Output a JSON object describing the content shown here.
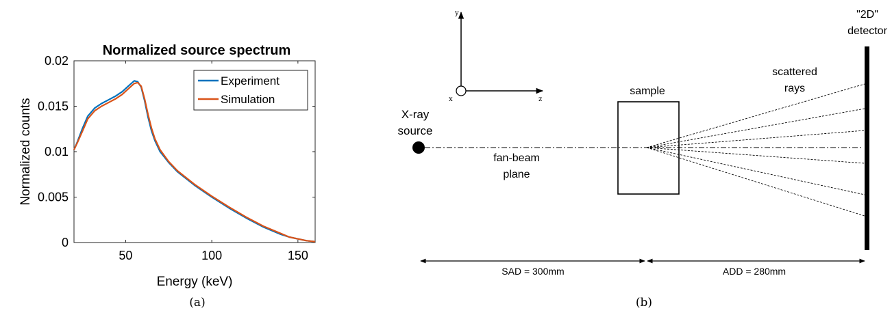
{
  "panel_a": {
    "caption": "(a)",
    "chart_data": {
      "type": "line",
      "title": "Normalized source spectrum",
      "xlabel": "Energy (keV)",
      "ylabel": "Normalized counts",
      "xlim": [
        20,
        160
      ],
      "ylim": [
        0,
        0.02
      ],
      "xticks": [
        50,
        100,
        150
      ],
      "xtick_labels": [
        "50",
        "100",
        "150"
      ],
      "yticks": [
        0,
        0.005,
        0.01,
        0.015,
        0.02
      ],
      "ytick_labels": [
        "0",
        "0.005",
        "0.01",
        "0.015",
        "0.02"
      ],
      "grid": false,
      "legend_position": "top-right",
      "series": [
        {
          "name": "Experiment",
          "color": "#0072BD",
          "x": [
            20,
            22,
            25,
            28,
            32,
            36,
            40,
            44,
            48,
            52,
            55,
            57,
            59,
            61,
            63,
            65,
            67,
            70,
            75,
            80,
            90,
            100,
            110,
            120,
            130,
            140,
            145,
            150,
            155,
            160
          ],
          "y": [
            0.0102,
            0.0111,
            0.0126,
            0.0139,
            0.0148,
            0.0153,
            0.0157,
            0.0161,
            0.0166,
            0.0173,
            0.0178,
            0.0177,
            0.0171,
            0.0156,
            0.0138,
            0.0123,
            0.0112,
            0.01,
            0.0088,
            0.0078,
            0.0063,
            0.005,
            0.0038,
            0.0027,
            0.0017,
            0.0009,
            0.0006,
            0.0004,
            0.0002,
            0.0001
          ]
        },
        {
          "name": "Simulation",
          "color": "#D95319",
          "x": [
            20,
            22,
            25,
            28,
            32,
            36,
            40,
            44,
            48,
            52,
            55,
            57,
            59,
            61,
            63,
            65,
            67,
            70,
            75,
            80,
            90,
            100,
            110,
            120,
            130,
            140,
            145,
            150,
            155,
            160
          ],
          "y": [
            0.0102,
            0.011,
            0.0123,
            0.0136,
            0.0145,
            0.015,
            0.0154,
            0.0158,
            0.0163,
            0.017,
            0.0175,
            0.0176,
            0.0172,
            0.0158,
            0.0141,
            0.0126,
            0.0114,
            0.0102,
            0.0089,
            0.0079,
            0.0064,
            0.0051,
            0.0039,
            0.0028,
            0.0018,
            0.001,
            0.0006,
            0.0004,
            0.0002,
            0.0001
          ]
        }
      ]
    }
  },
  "panel_b": {
    "caption": "(b)",
    "axes": {
      "x": "x",
      "y": "y",
      "z": "z"
    },
    "labels": {
      "source_line1": "X-ray",
      "source_line2": "source",
      "plane_line1": "fan-beam",
      "plane_line2": "plane",
      "sample": "sample",
      "rays_line1": "scattered",
      "rays_line2": "rays",
      "detector_line1": "\"2D\"",
      "detector_line2": "detector",
      "sad": "SAD = 300mm",
      "add": "ADD = 280mm"
    }
  }
}
